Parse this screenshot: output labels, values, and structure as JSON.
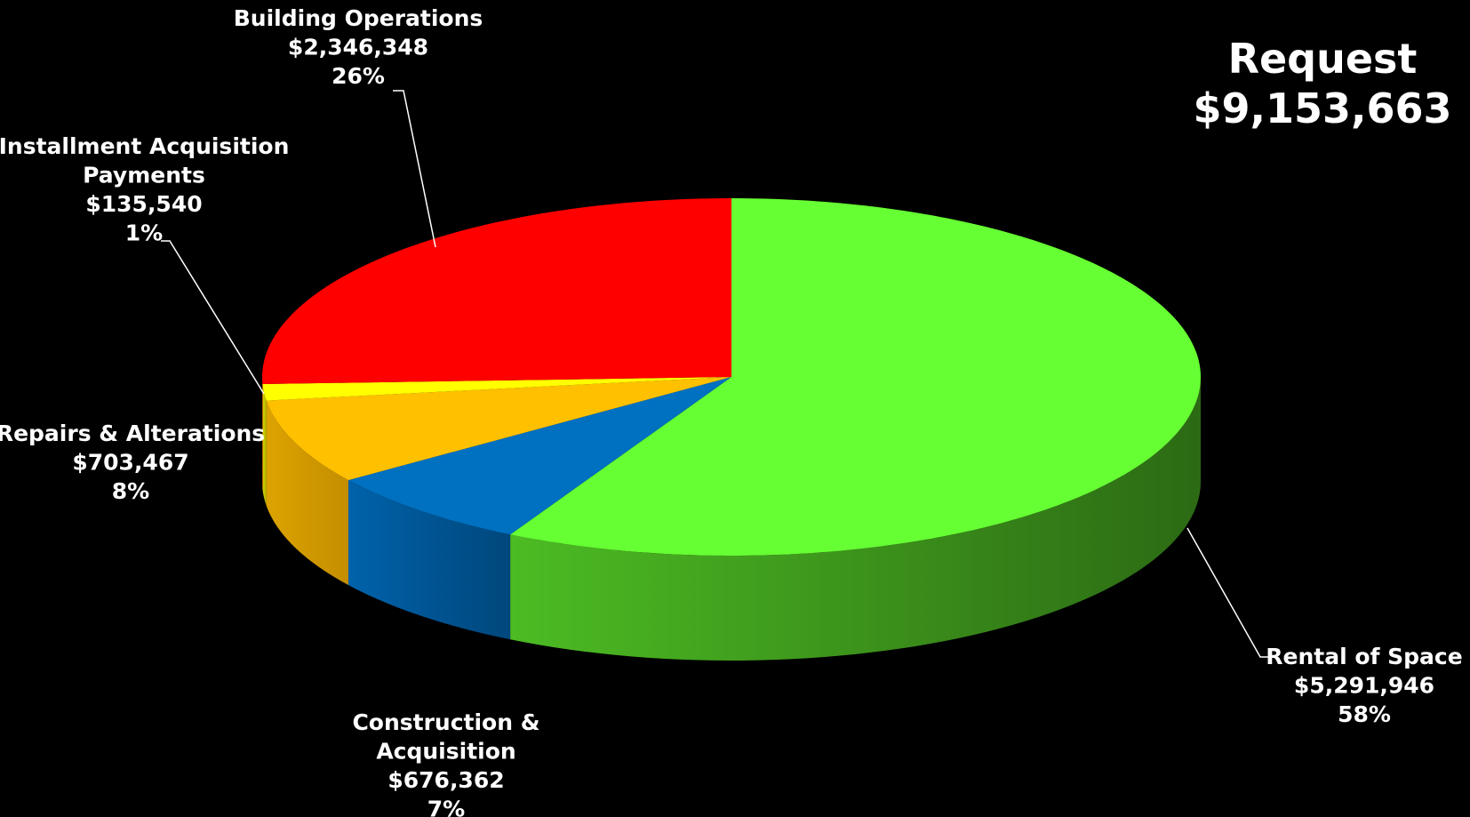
{
  "chart_data": {
    "type": "pie",
    "style": "3d",
    "title": "",
    "total_label": "Request",
    "total_value": "$9,153,663",
    "slices": [
      {
        "id": "rental",
        "label": [
          "Rental of Space"
        ],
        "value": 5291946,
        "amount": "$5,291,946",
        "percent": "58%",
        "color": "#66ff33",
        "side_dark": "#2c6a14",
        "side_light": "#4cbc23"
      },
      {
        "id": "construction",
        "label": [
          "Construction &",
          "Acquisition"
        ],
        "value": 676362,
        "amount": "$676,362",
        "percent": "7%",
        "color": "#0070c0",
        "side_dark": "#00477c",
        "side_light": "#0062aa"
      },
      {
        "id": "repairs",
        "label": [
          "Repairs & Alterations"
        ],
        "value": 703467,
        "amount": "$703,467",
        "percent": "8%",
        "color": "#ffc000",
        "side_dark": "#c48e00",
        "side_light": "#dca300"
      },
      {
        "id": "installment",
        "label": [
          "Installment Acquisition",
          "Payments"
        ],
        "value": 135540,
        "amount": "$135,540",
        "percent": "1%",
        "color": "#ffff00",
        "side_dark": "#b5b500",
        "side_light": "#d4d400"
      },
      {
        "id": "building",
        "label": [
          "Building Operations"
        ],
        "value": 2346348,
        "amount": "$2,346,348",
        "percent": "26%",
        "color": "#ff0000",
        "side_dark": "#990000",
        "side_light": "#cc0000"
      }
    ]
  }
}
